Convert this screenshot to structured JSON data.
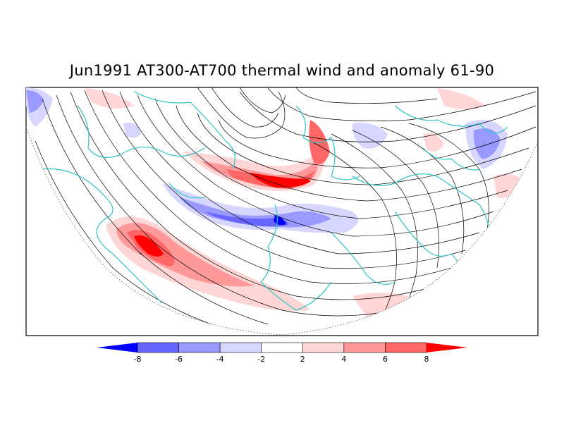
{
  "title": "Jun1991 AT300-AT700 thermal wind and anomaly 61-90",
  "colors": {
    "coast": "#2ec4c4",
    "stream": "#000000",
    "neg_strong": "#0000ff",
    "pos_strong": "#ff0000"
  },
  "colorbar": {
    "bins": [
      {
        "color": "#0000ff"
      },
      {
        "color": "#6666ff"
      },
      {
        "color": "#9999ff"
      },
      {
        "color": "#d6d6ff"
      },
      {
        "color": "#ffffff"
      },
      {
        "color": "#ffd6d6"
      },
      {
        "color": "#ff9999"
      },
      {
        "color": "#ff6666"
      },
      {
        "color": "#ff0000"
      }
    ],
    "labels": [
      "-8",
      "-6",
      "-4",
      "-2",
      "2",
      "4",
      "6",
      "8"
    ]
  }
}
